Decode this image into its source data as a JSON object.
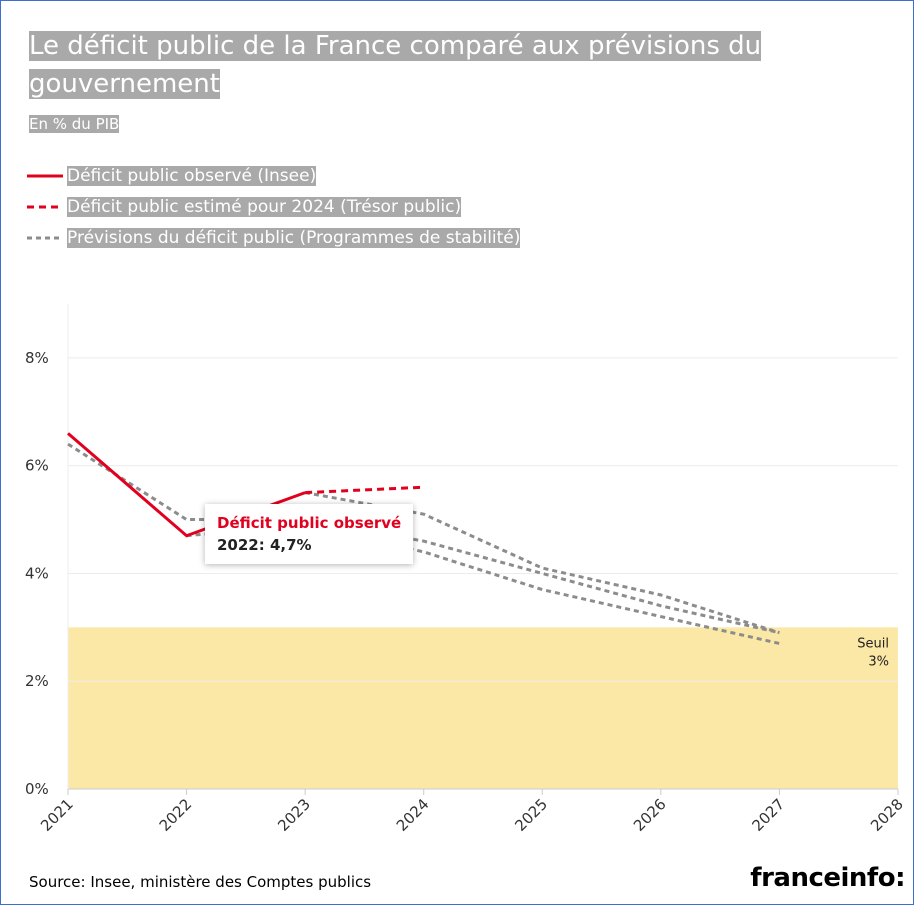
{
  "chart_data": {
    "type": "line",
    "title": "Le déficit public de la France comparé aux prévisions du gouvernement",
    "subtitle": "En % du PIB",
    "categories": [
      "2021",
      "2022",
      "2023",
      "2024",
      "2025",
      "2026",
      "2027",
      "2028"
    ],
    "series": [
      {
        "name": "Déficit public observé (Insee)",
        "color": "#e1001e",
        "dash": "solid",
        "values": [
          6.6,
          4.7,
          5.5,
          null,
          null,
          null,
          null,
          null
        ]
      },
      {
        "name": "Déficit public estimé pour 2024 (Trésor public)",
        "color": "#e1001e",
        "dash": "dashed",
        "values": [
          null,
          null,
          5.5,
          5.6,
          null,
          null,
          null,
          null
        ]
      },
      {
        "name": "Prévisions du déficit public (Programmes de stabilité)",
        "color": "#8c8c8c",
        "dash": "dotted",
        "values": [
          6.4,
          5.0,
          5.0,
          4.6,
          4.0,
          3.4,
          2.9,
          null
        ]
      },
      {
        "color": "#8c8c8c",
        "dash": "dotted",
        "values": [
          null,
          4.7,
          4.9,
          4.4,
          3.7,
          3.2,
          2.7,
          null
        ]
      },
      {
        "color": "#8c8c8c",
        "dash": "dotted",
        "values": [
          null,
          null,
          5.5,
          5.1,
          4.1,
          3.6,
          2.9,
          null
        ]
      }
    ],
    "ylim": [
      0,
      9
    ],
    "yticks": [
      {
        "value": 0,
        "label": "0%"
      },
      {
        "value": 2,
        "label": "2%"
      },
      {
        "value": 4,
        "label": "4%"
      },
      {
        "value": 6,
        "label": "6%"
      },
      {
        "value": 8,
        "label": "8%"
      }
    ],
    "grid": true,
    "threshold": {
      "value": 3,
      "label": "Seuil",
      "value_label": "3%",
      "color": "#fbe8a6"
    },
    "tooltip": {
      "text": "2022: 4,7%"
    },
    "source": "Source: Insee, ministère des Comptes publics",
    "logo": "franceinfo:"
  }
}
